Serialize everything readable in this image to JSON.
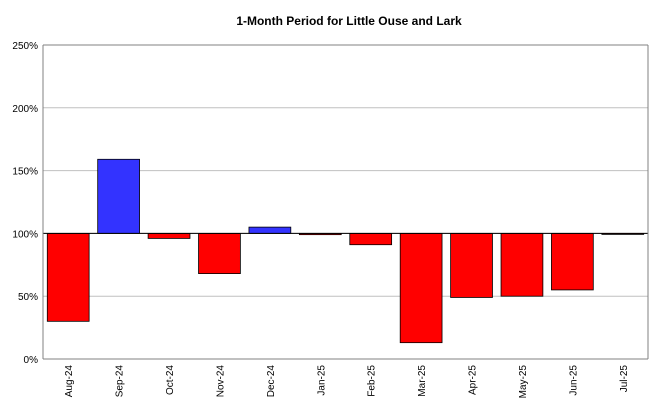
{
  "chart_data": {
    "type": "bar",
    "title": "1-Month Period for Little Ouse and Lark",
    "xlabel": "",
    "ylabel": "",
    "categories": [
      "Aug-24",
      "Sep-24",
      "Oct-24",
      "Nov-24",
      "Dec-24",
      "Jan-25",
      "Feb-25",
      "Mar-25",
      "Apr-25",
      "May-25",
      "Jun-25",
      "Jul-25"
    ],
    "values": [
      30,
      159,
      96,
      68,
      105,
      99,
      91,
      13,
      49,
      50,
      55,
      100
    ],
    "baseline": 100,
    "ylim": [
      0,
      250
    ],
    "yticks": [
      "0%",
      "50%",
      "100%",
      "150%",
      "200%",
      "250%"
    ],
    "grid": true,
    "legend": "none",
    "colors": {
      "above": "#3333ff",
      "below": "#ff0000",
      "grid": "#c0c0c0"
    }
  }
}
